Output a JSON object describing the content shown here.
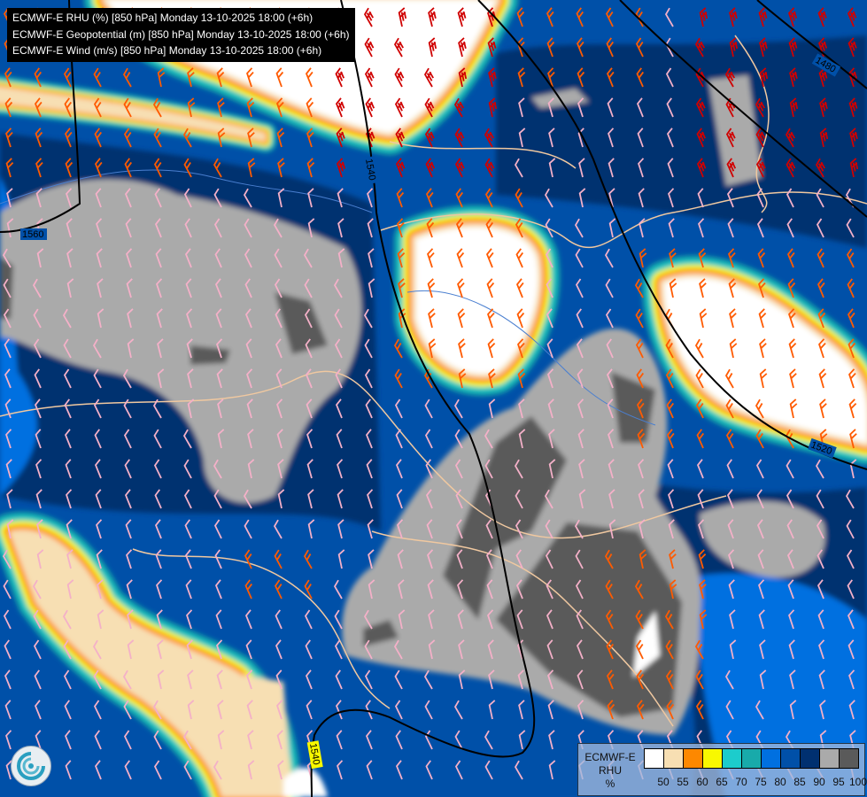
{
  "title_lines": [
    "ECMWF-E RHU (%) [850 hPa] Monday 13-10-2025 18:00 (+6h)",
    "ECMWF-E Geopotential (m) [850 hPa] Monday 13-10-2025 18:00 (+6h)",
    "ECMWF-E Wind (m/s) [850 hPa] Monday 13-10-2025 18:00 (+6h)"
  ],
  "legend": {
    "title_line1": "ECMWF-E",
    "title_line2": "RHU",
    "unit": "%",
    "colors": [
      "#ffffff",
      "#f7dfb3",
      "#fd8800",
      "#f8f800",
      "#1ccccc",
      "#18aaaa",
      "#0070e0",
      "#0050a8",
      "#003070",
      "#aaaaaa",
      "#5a5a5a"
    ],
    "ticks": [
      "50",
      "55",
      "60",
      "65",
      "70",
      "75",
      "80",
      "85",
      "90",
      "95",
      "100"
    ]
  },
  "contour_labels": [
    "1560",
    "1540",
    "1540",
    "1520",
    "1480"
  ],
  "wind_barb_colors": {
    "light": "#f4b0c8",
    "medium": "#ff5a00",
    "strong": "#d00000"
  },
  "logo": "ecmwf-logo-icon"
}
